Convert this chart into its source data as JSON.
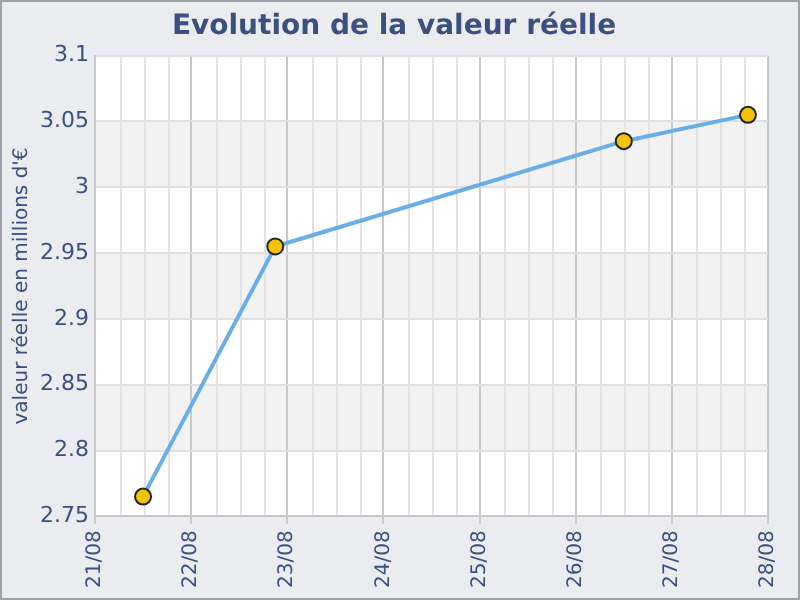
{
  "chart_data": {
    "type": "line",
    "title": "Evolution de la valeur réelle",
    "ylabel": "valeur réelle en millions d'€",
    "x": [
      "--08-21T12:00",
      "--08-22T21:00",
      "--08-26T12:00",
      "--08-27T19:00"
    ],
    "series": [
      {
        "color": "#6aaee8",
        "values": [
          2.765,
          2.955,
          3.035,
          3.055
        ]
      }
    ],
    "xlim": [
      "--08-21",
      "--08-28"
    ],
    "xticks": [
      {
        "value": "--08-21",
        "label": "21/08"
      },
      {
        "value": "--08-22",
        "label": "22/08"
      },
      {
        "value": "--08-23",
        "label": "23/08"
      },
      {
        "value": "--08-24",
        "label": "24/08"
      },
      {
        "value": "--08-25",
        "label": "25/08"
      },
      {
        "value": "--08-26",
        "label": "26/08"
      },
      {
        "value": "--08-27",
        "label": "27/08"
      },
      {
        "value": "--08-28",
        "label": "28/08"
      }
    ],
    "ylim": [
      2.75,
      3.1
    ],
    "yticks": [
      2.75,
      2.8,
      2.85,
      2.9,
      2.95,
      3,
      3.05,
      3.1
    ],
    "grid": true,
    "legend": false,
    "marker": "circle",
    "line_style": "solid"
  }
}
